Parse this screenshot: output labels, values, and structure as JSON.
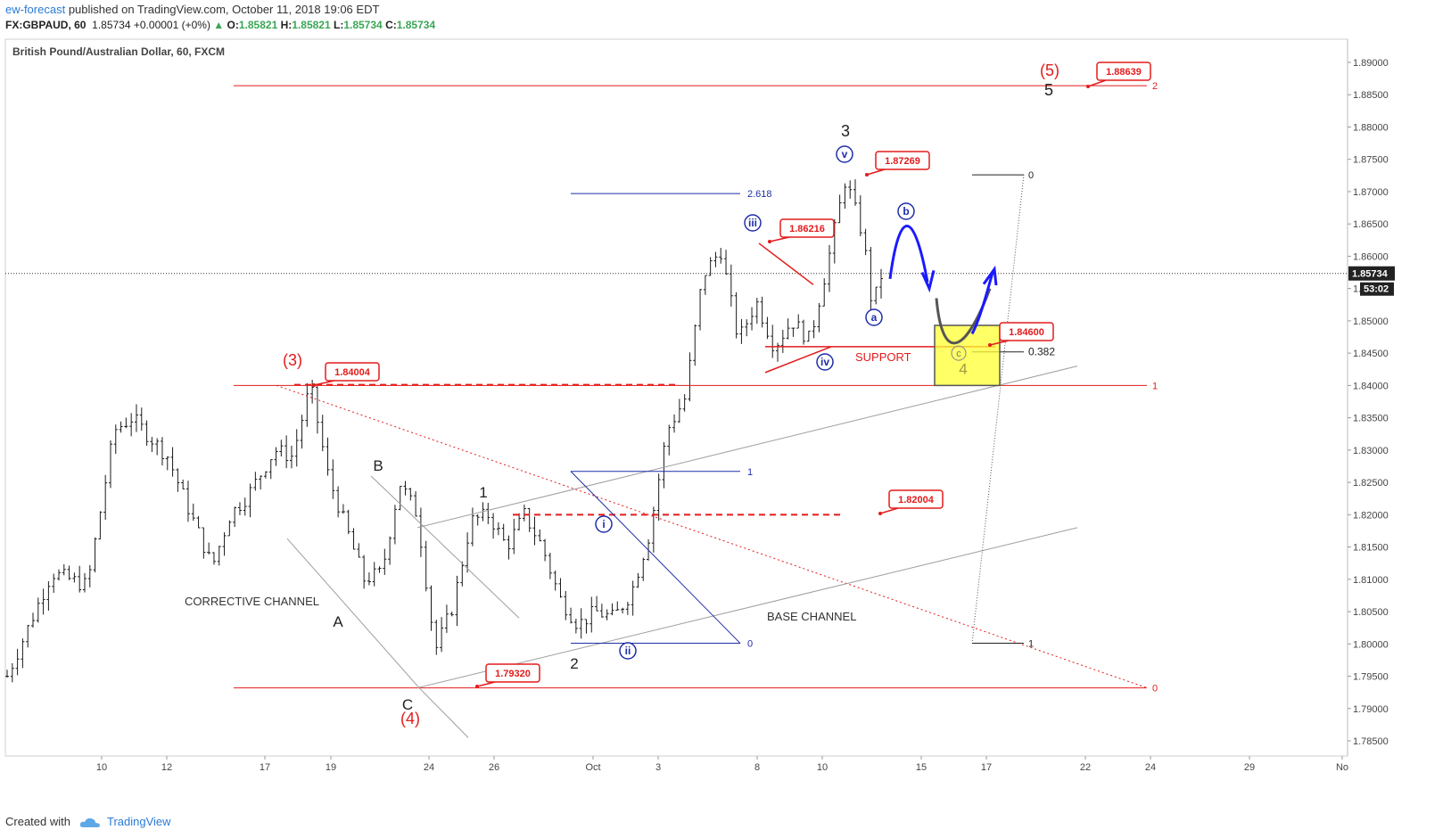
{
  "header": {
    "author": "ew-forecast",
    "published_text": "published on TradingView.com, October 11, 2018 19:06 EDT",
    "symbol": "FX:GBPAUD, 60",
    "last": "1.85734",
    "change_arrow": "▲",
    "change": "+0.00001 (+0%)",
    "o_label": "O:",
    "o_value": "1.85821",
    "h_label": "H:",
    "h_value": "1.85821",
    "l_label": "L:",
    "l_value": "1.85734",
    "c_label": "C:",
    "c_value": "1.85734"
  },
  "footer": {
    "created_with": "Created with",
    "brand": "TradingView",
    "logo_icon": "tradingview-cloud-icon"
  },
  "colors": {
    "red": "#e31b1b",
    "blue": "#1a1aff",
    "navy": "#1f2ea8",
    "gray_line": "#9e9e9e",
    "bars": "#1a1a1a",
    "highlight_fill": "#ffff33",
    "highlight_border": "#555555",
    "price_tag_bg": "#222222",
    "tag_border": "#e31b1b"
  },
  "chart_data": {
    "type": "ohlc",
    "title": "British Pound/Australian Dollar, 60, FXCM",
    "x_ticks": [
      "10",
      "12",
      "17",
      "19",
      "24",
      "26",
      "Oct",
      "3",
      "8",
      "10",
      "15",
      "17",
      "22",
      "24",
      "29",
      "No"
    ],
    "y_ticks": [
      "1.89000",
      "1.88500",
      "1.88000",
      "1.87500",
      "1.87000",
      "1.86500",
      "1.86000",
      "1.85500",
      "1.85000",
      "1.84500",
      "1.84000",
      "1.83500",
      "1.83000",
      "1.82500",
      "1.82000",
      "1.81500",
      "1.81000",
      "1.80500",
      "1.80000",
      "1.79500",
      "1.79000",
      "1.78500"
    ],
    "ylim": [
      1.7825,
      1.8935
    ],
    "current_price": "1.85734",
    "countdown": "53:02",
    "price_series_approx": [
      [
        0,
        1.795
      ],
      [
        5,
        1.811
      ],
      [
        9,
        1.809
      ],
      [
        12,
        1.833
      ],
      [
        14,
        1.835
      ],
      [
        18,
        1.829
      ],
      [
        20,
        1.822
      ],
      [
        23,
        1.812
      ],
      [
        25,
        1.82
      ],
      [
        27,
        1.823
      ],
      [
        30,
        1.83
      ],
      [
        32,
        1.829
      ],
      [
        34,
        1.84
      ],
      [
        36,
        1.826
      ],
      [
        40,
        1.81
      ],
      [
        42,
        1.811
      ],
      [
        44,
        1.825
      ],
      [
        46,
        1.82
      ],
      [
        48,
        1.799
      ],
      [
        50,
        1.806
      ],
      [
        52,
        1.819
      ],
      [
        54,
        1.82
      ],
      [
        56,
        1.815
      ],
      [
        58,
        1.82
      ],
      [
        60,
        1.815
      ],
      [
        62,
        1.807
      ],
      [
        64,
        1.803
      ],
      [
        66,
        1.805
      ],
      [
        68,
        1.804
      ],
      [
        70,
        1.808
      ],
      [
        72,
        1.817
      ],
      [
        74,
        1.833
      ],
      [
        76,
        1.838
      ],
      [
        78,
        1.857
      ],
      [
        80,
        1.861
      ],
      [
        82,
        1.847
      ],
      [
        84,
        1.853
      ],
      [
        86,
        1.846
      ],
      [
        88,
        1.85
      ],
      [
        90,
        1.847
      ],
      [
        92,
        1.859
      ],
      [
        94,
        1.872
      ],
      [
        96,
        1.863
      ],
      [
        97,
        1.852
      ],
      [
        98,
        1.857
      ]
    ],
    "horizontal_levels": [
      {
        "value": 1.8864,
        "label": "2"
      },
      {
        "value": 1.84,
        "label": "1"
      },
      {
        "value": 1.7932,
        "label": "0"
      }
    ],
    "fib_levels": [
      {
        "ratio": "2.618",
        "value": 1.8697
      },
      {
        "ratio": "1",
        "value": 1.8267
      },
      {
        "ratio": "0",
        "value": 1.8001
      },
      {
        "ratio": "0",
        "value": 1.8726
      },
      {
        "ratio": "0.382",
        "value": 1.8452
      },
      {
        "ratio": "1",
        "value": 1.8001
      }
    ],
    "price_callouts": [
      "1.88639",
      "1.87269",
      "1.86216",
      "1.84004",
      "1.84600",
      "1.82004",
      "1.79320"
    ],
    "wave_labels": {
      "w3_major": "(3)",
      "w4_major": "(4)",
      "w5_major": "(5)",
      "w1": "1",
      "w2": "2",
      "w3": "3",
      "w4": "4",
      "w5": "5",
      "wA": "A",
      "wB": "B",
      "wC": "C",
      "wi": "i",
      "wii": "ii",
      "wiii": "iii",
      "wiv": "iv",
      "wv": "v",
      "wa": "a",
      "wb": "b",
      "wc": "c"
    },
    "text_annotations": {
      "corrective_channel": "CORRECTIVE CHANNEL",
      "base_channel": "BASE CHANNEL",
      "support": "SUPPORT"
    }
  }
}
